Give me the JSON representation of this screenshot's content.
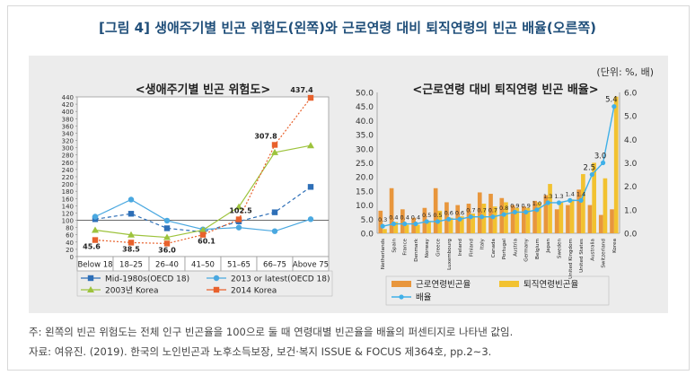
{
  "figure": {
    "title": "[그림 4] 생애주기별 빈곤 위험도(왼쪽)와 근로연령 대비 퇴직연령의 빈곤 배율(오른쪽)",
    "unit": "(단위: %, 배)",
    "note": "주: 왼쪽의 빈곤 위험도는 전체 인구 빈곤율을 100으로 둘 때 연령대별 빈곤율을 배율의 퍼센티지로 나타낸 값임.",
    "source": "자료: 여유진. (2019). 한국의 노인빈곤과 노후소득보장, 보건·복지 ISSUE & FOCUS 제364호, pp.2~3."
  },
  "colors": {
    "panel_bg": "#ececec",
    "mid1980s": "#2e6fb7",
    "latest": "#4aa8e0",
    "korea2003": "#9dc33c",
    "korea2014": "#e8612c",
    "working_bar": "#e8963c",
    "retired_bar": "#f2c230",
    "ratio_line": "#3fb0e8"
  },
  "chart_data": [
    {
      "type": "line",
      "title": "<생애주기별 빈곤 위험도>",
      "categories": [
        "Below 18",
        "18–25",
        "26–40",
        "41–50",
        "51–65",
        "66–75",
        "Above 75"
      ],
      "ylim": [
        0,
        440
      ],
      "yticks": [
        0,
        20,
        40,
        60,
        80,
        100,
        120,
        140,
        160,
        180,
        200,
        220,
        240,
        260,
        280,
        300,
        320,
        340,
        360,
        380,
        400,
        420,
        440
      ],
      "series": [
        {
          "name": "Mid-1980s(OECD 18)",
          "marker": "square",
          "style": "dashed",
          "color": "#2e6fb7",
          "values": [
            103,
            118,
            78,
            68,
            97,
            122,
            192
          ]
        },
        {
          "name": "2013 or latest(OECD 18)",
          "marker": "circle",
          "style": "solid",
          "color": "#4aa8e0",
          "values": [
            110,
            157,
            99,
            75,
            80,
            70,
            103
          ]
        },
        {
          "name": "2003년 Korea",
          "marker": "triangle",
          "style": "solid",
          "color": "#9dc33c",
          "values": [
            73,
            60,
            53,
            73,
            137,
            287,
            306
          ]
        },
        {
          "name": "2014 Korea",
          "marker": "square",
          "style": "dotted",
          "color": "#e8612c",
          "values": [
            45.6,
            38.5,
            36.0,
            60.1,
            102.5,
            307.8,
            437.4
          ]
        }
      ],
      "data_labels": [
        "45.6",
        "38.5",
        "36.0",
        "60.1",
        "102.5",
        "307.8",
        "437.4"
      ],
      "legend_position": "bottom"
    },
    {
      "type": "bar",
      "title": "<근로연령 대비 퇴직연령 빈곤 배율>",
      "categories": [
        "Netherlands",
        "Spain",
        "France",
        "Denmark",
        "Norway",
        "Greece",
        "Luxembourg",
        "Ireland",
        "Finland",
        "Italy",
        "Canada",
        "Portugal",
        "Austria",
        "Germany",
        "Belgium",
        "Japan",
        "Sweden",
        "United Kingdom",
        "United States",
        "Australia",
        "Switzerland",
        "Korea"
      ],
      "ylim_left": [
        0,
        50
      ],
      "yticks_left": [
        "0.0",
        "5.0",
        "10.0",
        "15.0",
        "20.0",
        "25.0",
        "30.0",
        "35.0",
        "40.0",
        "45.0",
        "50.0"
      ],
      "ylim_right": [
        0,
        6
      ],
      "yticks_right": [
        "0.0",
        "1.0",
        "2.0",
        "3.0",
        "4.0",
        "5.0",
        "6.0"
      ],
      "series": [
        {
          "name": "근로연령빈곤율",
          "axis": "left",
          "color": "#e8963c",
          "values": [
            8.0,
            16.0,
            8.5,
            5.5,
            9.0,
            16.0,
            11.0,
            10.0,
            10.5,
            14.5,
            14.0,
            12.5,
            10.0,
            9.5,
            11.5,
            13.5,
            8.5,
            10.0,
            15.5,
            10.0,
            6.5,
            8.5
          ]
        },
        {
          "name": "퇴직연령빈곤율",
          "axis": "left",
          "color": "#f2c230",
          "values": [
            1.5,
            4.0,
            3.0,
            3.0,
            4.0,
            8.0,
            5.5,
            6.0,
            7.0,
            10.5,
            9.5,
            11.0,
            9.0,
            9.0,
            11.0,
            17.5,
            11.0,
            12.0,
            21.0,
            25.0,
            19.5,
            48.5
          ]
        },
        {
          "name": "배율",
          "axis": "right",
          "type": "line",
          "color": "#3fb0e8",
          "values": [
            0.3,
            0.4,
            0.4,
            0.4,
            0.5,
            0.5,
            0.6,
            0.6,
            0.7,
            0.7,
            0.7,
            0.8,
            0.9,
            0.9,
            1.0,
            1.3,
            1.3,
            1.4,
            1.4,
            2.5,
            3.0,
            5.4
          ]
        }
      ],
      "ratio_labels": [
        "0.3",
        "0.4",
        "0.4",
        "0.4",
        "0.5",
        "0.5",
        "0.6",
        "0.6",
        "0.7",
        "0.7",
        "0.7",
        "0.8",
        "0.9",
        "0.9",
        "1.0",
        "1.3",
        "1.3",
        "1.4",
        "1.4",
        "2.5",
        "3.0",
        "5.4"
      ],
      "legend_position": "bottom"
    }
  ]
}
